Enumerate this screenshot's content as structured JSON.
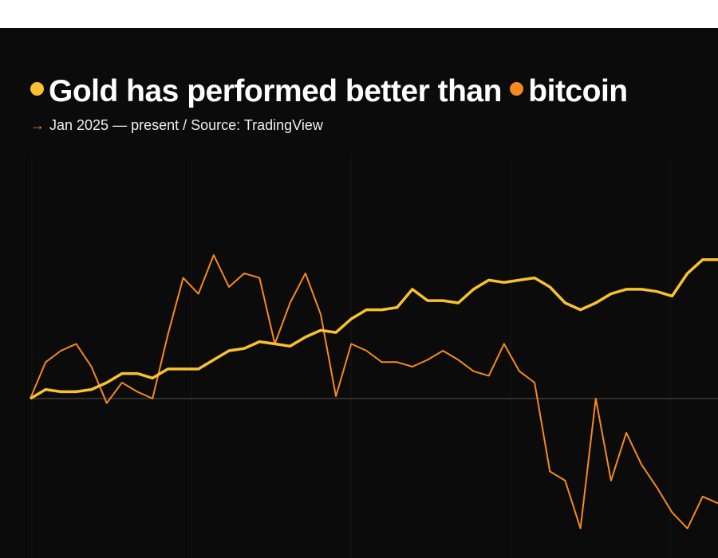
{
  "chart_data": {
    "type": "line",
    "title": "has performed better than",
    "subtitle_icon": "→",
    "subtitle": "Jan 2025 — present / Source: TradingView",
    "ylim": [
      -70,
      105
    ],
    "series": [
      {
        "name": "Gold",
        "color": "#f9c12e",
        "values": [
          0,
          4,
          3,
          3,
          4,
          7,
          11,
          11,
          9,
          13,
          13,
          13,
          17,
          21,
          22,
          25,
          24,
          23,
          27,
          30,
          29,
          35,
          39,
          39,
          40,
          48,
          43,
          43,
          42,
          48,
          52,
          51,
          52,
          53,
          49,
          42,
          39,
          42,
          46,
          48,
          48,
          47,
          45,
          55,
          61,
          61
        ]
      },
      {
        "name": "bitcoin",
        "color": "#f7891f",
        "values": [
          0,
          16,
          21,
          24,
          14,
          -2,
          7,
          3,
          0,
          28,
          53,
          46,
          63,
          49,
          55,
          53,
          24,
          42,
          55,
          37,
          1,
          24,
          21,
          16,
          16,
          14,
          17,
          21,
          17,
          12,
          10,
          24,
          12,
          7,
          -32,
          -36,
          -57,
          0,
          -36,
          -15,
          -29,
          -39,
          -50,
          -57,
          -43,
          -46
        ]
      }
    ]
  }
}
